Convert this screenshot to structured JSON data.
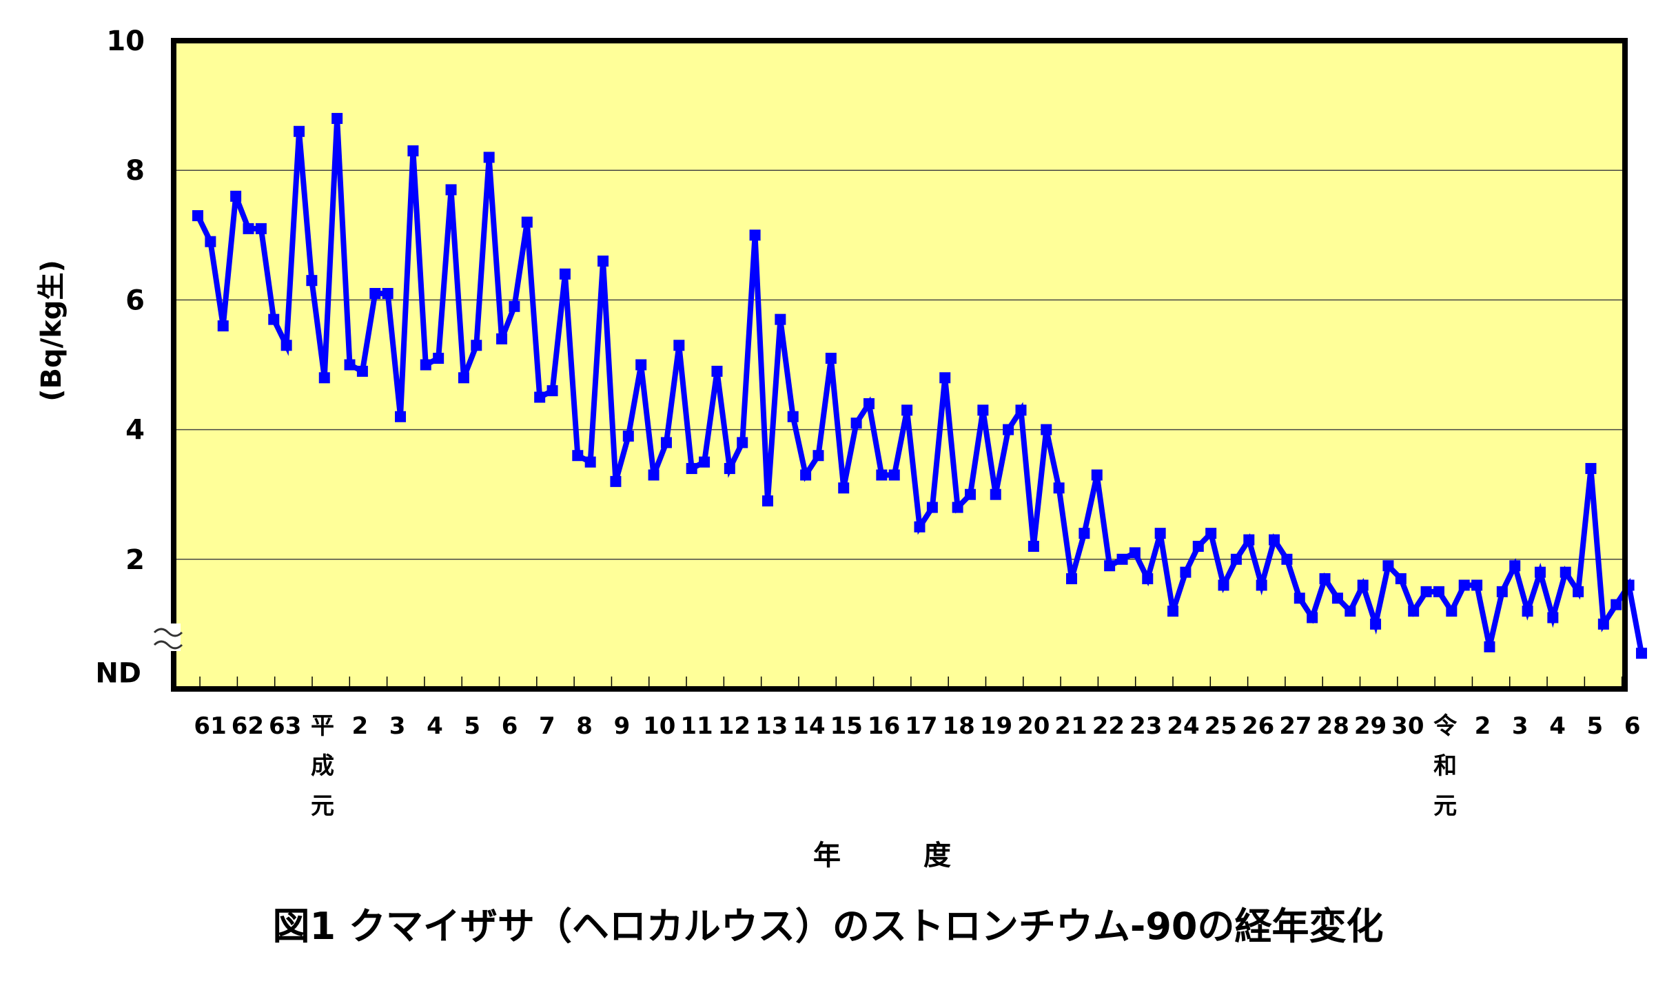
{
  "chart_data": {
    "type": "line",
    "title": "図1 クマイザサ（ヘロカルウス）のストロンチウム-90の経年変化",
    "xlabel": "年　度",
    "ylabel": "(Bq/kg生)",
    "ylim": [
      0,
      10
    ],
    "yticks": [
      "10",
      "8",
      "6",
      "4",
      "2",
      "ND"
    ],
    "grid": true,
    "legend": null,
    "background_color": "#FFFF99",
    "line_color": "#0000FF",
    "x_tick_labels": [
      "61",
      "62",
      "63",
      "平成元",
      "2",
      "3",
      "4",
      "5",
      "6",
      "7",
      "8",
      "9",
      "10",
      "11",
      "12",
      "13",
      "14",
      "15",
      "16",
      "17",
      "18",
      "19",
      "20",
      "21",
      "22",
      "23",
      "24",
      "25",
      "26",
      "27",
      "28",
      "29",
      "30",
      "令和元",
      "2",
      "3",
      "4",
      "5",
      "6"
    ],
    "series": [
      {
        "name": "ストロンチウム-90",
        "values": [
          7.3,
          6.9,
          5.6,
          7.6,
          7.1,
          7.1,
          5.7,
          5.3,
          8.6,
          6.3,
          4.8,
          8.8,
          5.0,
          4.9,
          6.1,
          6.1,
          4.2,
          8.3,
          5.0,
          5.1,
          7.7,
          4.8,
          5.3,
          8.2,
          5.4,
          5.9,
          7.2,
          4.5,
          4.6,
          6.4,
          3.6,
          3.5,
          6.6,
          3.2,
          3.9,
          5.0,
          3.3,
          3.8,
          5.3,
          3.4,
          3.5,
          4.9,
          3.4,
          3.8,
          7.0,
          2.9,
          5.7,
          4.2,
          3.3,
          3.6,
          5.1,
          3.1,
          4.1,
          4.4,
          3.3,
          3.3,
          4.3,
          2.5,
          2.8,
          4.8,
          2.8,
          3.0,
          4.3,
          3.0,
          4.0,
          4.3,
          2.2,
          4.0,
          3.1,
          1.7,
          2.4,
          3.3,
          1.9,
          2.0,
          2.1,
          1.7,
          2.4,
          1.2,
          1.8,
          2.2,
          2.4,
          1.6,
          2.0,
          2.3,
          1.6,
          2.3,
          2.0,
          1.4,
          1.1,
          1.7,
          1.4,
          1.2,
          1.6,
          1.0,
          1.9,
          1.7,
          1.2,
          1.5,
          1.5,
          1.2,
          1.6,
          1.6,
          0.65,
          1.5,
          1.9,
          1.2,
          1.8,
          1.1,
          1.8,
          1.5,
          3.4,
          1.0,
          1.3,
          1.6,
          0.55
        ]
      }
    ]
  },
  "caption": "図1 クマイザサ（ヘロカルウス）のストロンチウム-90の経年変化",
  "axis_break_symbol": "≈"
}
